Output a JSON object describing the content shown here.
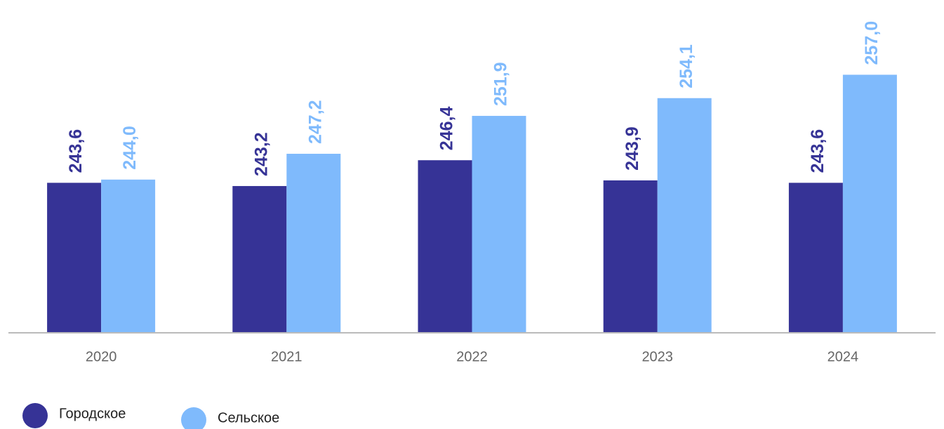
{
  "chart_data": {
    "type": "bar",
    "categories": [
      "2020",
      "2021",
      "2022",
      "2023",
      "2024"
    ],
    "series": [
      {
        "name": "Городское",
        "color": "#363396",
        "values": [
          243.6,
          243.2,
          246.4,
          243.9,
          243.6
        ],
        "value_labels": [
          "243,6",
          "243,2",
          "246,4",
          "243,9",
          "243,6"
        ]
      },
      {
        "name": "Сельское",
        "color": "#7fbafc",
        "values": [
          244.0,
          247.2,
          251.9,
          254.1,
          257.0
        ],
        "value_labels": [
          "244,0",
          "247,2",
          "251,9",
          "254,1",
          "257,0"
        ]
      }
    ],
    "ylim": [
      225,
      260
    ]
  }
}
